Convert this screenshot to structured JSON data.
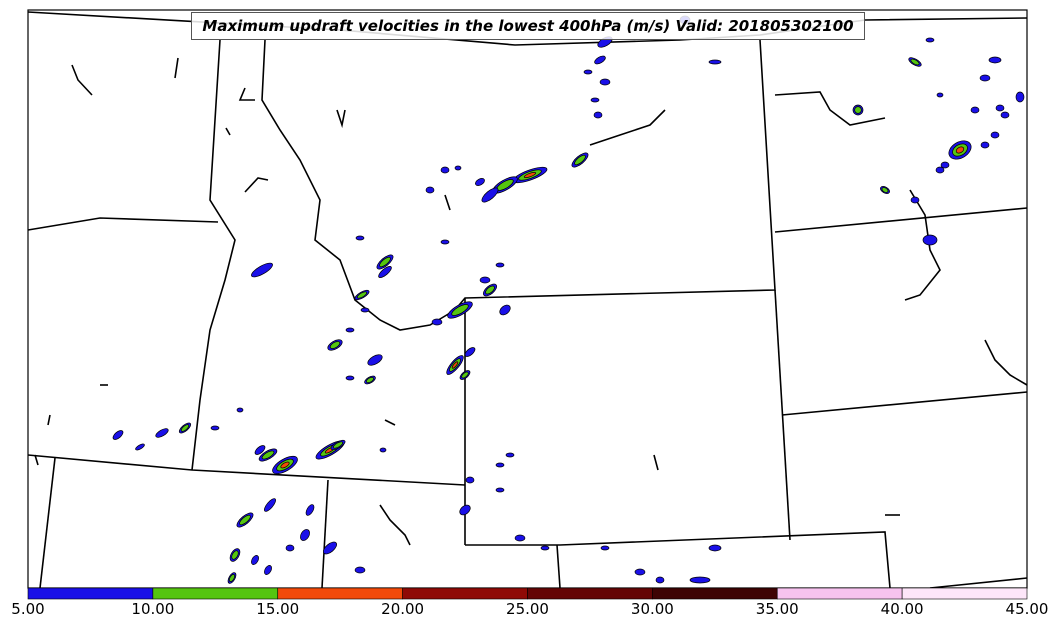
{
  "title": "Maximum updraft velocities in the lowest 400hPa (m/s) Valid: 201805302100",
  "colorbar": {
    "tick_labels": [
      "5.00",
      "10.00",
      "15.00",
      "20.00",
      "25.00",
      "30.00",
      "35.00",
      "40.00",
      "45.00"
    ],
    "bins": [
      {
        "min": 5,
        "max": 10,
        "color": "#1a10e8"
      },
      {
        "min": 10,
        "max": 15,
        "color": "#55c510"
      },
      {
        "min": 15,
        "max": 20,
        "color": "#f24a0a"
      },
      {
        "min": 20,
        "max": 25,
        "color": "#8f0a06"
      },
      {
        "min": 25,
        "max": 30,
        "color": "#640505"
      },
      {
        "min": 30,
        "max": 35,
        "color": "#3e0303"
      },
      {
        "min": 35,
        "max": 40,
        "color": "#f7c3ef"
      },
      {
        "min": 40,
        "max": 45,
        "color": "#fde6f9"
      }
    ]
  },
  "colors": {
    "boundary": "#000000",
    "background": "#ffffff"
  }
}
